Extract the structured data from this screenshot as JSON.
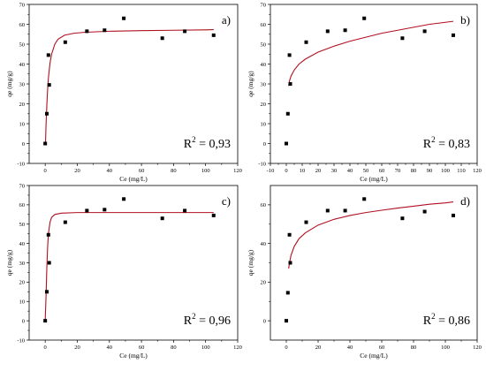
{
  "chart_data": [
    {
      "type": "scatter",
      "panel_label": "a)",
      "xlabel": "Ce (mg/L)",
      "ylabel": "qe (mg/g)",
      "xlim": [
        -10,
        120
      ],
      "ylim": [
        -10,
        70
      ],
      "xticks": [
        0,
        20,
        40,
        60,
        80,
        100,
        120
      ],
      "yticks": [
        -10,
        0,
        10,
        20,
        30,
        40,
        50,
        60,
        70
      ],
      "r2_label": "R",
      "r2_sup": "2",
      "r2_value": " = 0,93",
      "points": [
        [
          0,
          0
        ],
        [
          1,
          15
        ],
        [
          2,
          44.5
        ],
        [
          2.5,
          29.5
        ],
        [
          12.5,
          51
        ],
        [
          26,
          56.5
        ],
        [
          37,
          57
        ],
        [
          49,
          63
        ],
        [
          73,
          53
        ],
        [
          87,
          56.5
        ],
        [
          105,
          54.5
        ]
      ],
      "fit": [
        [
          0.2,
          0.2
        ],
        [
          0.5,
          9
        ],
        [
          1,
          19
        ],
        [
          1.5,
          27
        ],
        [
          2,
          33
        ],
        [
          3,
          40.5
        ],
        [
          4,
          45
        ],
        [
          6,
          50
        ],
        [
          8,
          52.5
        ],
        [
          12,
          54.5
        ],
        [
          18,
          55.5
        ],
        [
          25,
          56
        ],
        [
          40,
          56.5
        ],
        [
          60,
          56.8
        ],
        [
          80,
          57
        ],
        [
          100,
          57.2
        ],
        [
          105,
          57.3
        ]
      ]
    },
    {
      "type": "scatter",
      "panel_label": "b)",
      "xlabel": "Ce (mg/L)",
      "ylabel": "qe (mg/g)",
      "xlim": [
        -10,
        120
      ],
      "ylim": [
        -10,
        70
      ],
      "xticks": [
        -10,
        0,
        10,
        20,
        30,
        40,
        50,
        60,
        70,
        80,
        90,
        100,
        110,
        120
      ],
      "yticks": [
        -10,
        0,
        10,
        20,
        30,
        40,
        50,
        60,
        70
      ],
      "r2_label": "R",
      "r2_sup": "2",
      "r2_value": " = 0,83",
      "points": [
        [
          0,
          0
        ],
        [
          1,
          15
        ],
        [
          2,
          44.5
        ],
        [
          2.5,
          30
        ],
        [
          12.5,
          51
        ],
        [
          26,
          56.5
        ],
        [
          37,
          57
        ],
        [
          49,
          63
        ],
        [
          73,
          53
        ],
        [
          87,
          56.5
        ],
        [
          105,
          54.5
        ]
      ],
      "fit": [
        [
          1.5,
          29
        ],
        [
          2,
          31.5
        ],
        [
          3,
          34
        ],
        [
          5,
          37
        ],
        [
          8,
          40
        ],
        [
          12,
          42.5
        ],
        [
          20,
          46
        ],
        [
          30,
          49
        ],
        [
          40,
          51.5
        ],
        [
          50,
          53.5
        ],
        [
          60,
          55.5
        ],
        [
          70,
          57
        ],
        [
          80,
          58.5
        ],
        [
          90,
          60
        ],
        [
          100,
          61
        ],
        [
          105,
          61.5
        ]
      ]
    },
    {
      "type": "scatter",
      "panel_label": "c)",
      "xlabel": "Ce (mg/L)",
      "ylabel": "qe (mg/g)",
      "xlim": [
        -10,
        120
      ],
      "ylim": [
        -10,
        70
      ],
      "xticks": [
        0,
        20,
        40,
        60,
        80,
        100,
        120
      ],
      "yticks": [
        -10,
        0,
        10,
        20,
        30,
        40,
        50,
        60,
        70
      ],
      "r2_label": "R",
      "r2_sup": "2",
      "r2_value": " = 0,96",
      "points": [
        [
          0,
          0
        ],
        [
          1,
          15
        ],
        [
          2,
          44.5
        ],
        [
          2.5,
          30
        ],
        [
          12.5,
          51
        ],
        [
          26,
          57
        ],
        [
          37,
          57.5
        ],
        [
          49,
          63
        ],
        [
          73,
          53
        ],
        [
          87,
          57
        ],
        [
          105,
          54.5
        ]
      ],
      "fit": [
        [
          0,
          0
        ],
        [
          0.5,
          12
        ],
        [
          1,
          27
        ],
        [
          1.5,
          38
        ],
        [
          2,
          45
        ],
        [
          3,
          51
        ],
        [
          4,
          53.5
        ],
        [
          6,
          55
        ],
        [
          10,
          55.7
        ],
        [
          20,
          56
        ],
        [
          50,
          56
        ],
        [
          80,
          56
        ],
        [
          105,
          56
        ]
      ]
    },
    {
      "type": "scatter",
      "panel_label": "d)",
      "xlabel": "Ce (mg/L)",
      "ylabel": "qe (mg/g)",
      "xlim": [
        -10,
        120
      ],
      "ylim": [
        -10,
        70
      ],
      "xticks": [
        0,
        20,
        40,
        60,
        80,
        100,
        120
      ],
      "yticks": [
        0,
        20,
        40,
        60
      ],
      "r2_label": "R",
      "r2_sup": "2",
      "r2_value": " = 0,86",
      "points": [
        [
          0,
          0
        ],
        [
          1,
          14.5
        ],
        [
          2,
          44.5
        ],
        [
          2.5,
          30
        ],
        [
          12.5,
          51
        ],
        [
          26,
          57
        ],
        [
          37,
          57
        ],
        [
          49,
          63
        ],
        [
          73,
          53
        ],
        [
          87,
          56.5
        ],
        [
          105,
          54.5
        ]
      ],
      "fit": [
        [
          1.5,
          27
        ],
        [
          2,
          30
        ],
        [
          3,
          34
        ],
        [
          5,
          38.5
        ],
        [
          8,
          42.5
        ],
        [
          12,
          45.5
        ],
        [
          20,
          49.5
        ],
        [
          30,
          52.5
        ],
        [
          40,
          54.5
        ],
        [
          50,
          56
        ],
        [
          60,
          57.2
        ],
        [
          70,
          58.3
        ],
        [
          80,
          59.3
        ],
        [
          90,
          60.3
        ],
        [
          100,
          61
        ],
        [
          105,
          61.5
        ]
      ]
    }
  ],
  "colors": {
    "point": "#000000",
    "fit_line": "#b01020",
    "axis": "#000000"
  }
}
